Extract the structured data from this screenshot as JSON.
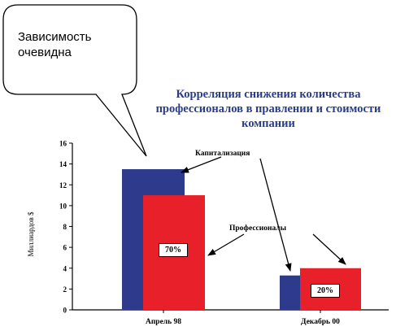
{
  "callout": {
    "text": "Зависимость\nочевидна"
  },
  "chart_data": {
    "type": "bar",
    "title": "Корреляция снижения количества профессионалов в правлении и стоимости компании",
    "ylabel": "Миллиардов $",
    "xlabel": "",
    "ylim": [
      0,
      16
    ],
    "yticks": [
      0,
      2,
      4,
      6,
      8,
      10,
      12,
      14,
      16
    ],
    "categories": [
      "Апрель 98",
      "Декабрь 00"
    ],
    "series": [
      {
        "name": "Капитализация",
        "values": [
          13.5,
          3.3
        ],
        "color": "#2e3a8c"
      },
      {
        "name": "Профессионалы",
        "values": [
          11.0,
          4.0
        ],
        "color": "#e8202a"
      }
    ],
    "annotations": {
      "cap_label": "Капитализация",
      "prof_label": "Профессионалы",
      "pct_april": "70%",
      "pct_dec": "20%"
    },
    "grid": false,
    "legend": "none"
  }
}
